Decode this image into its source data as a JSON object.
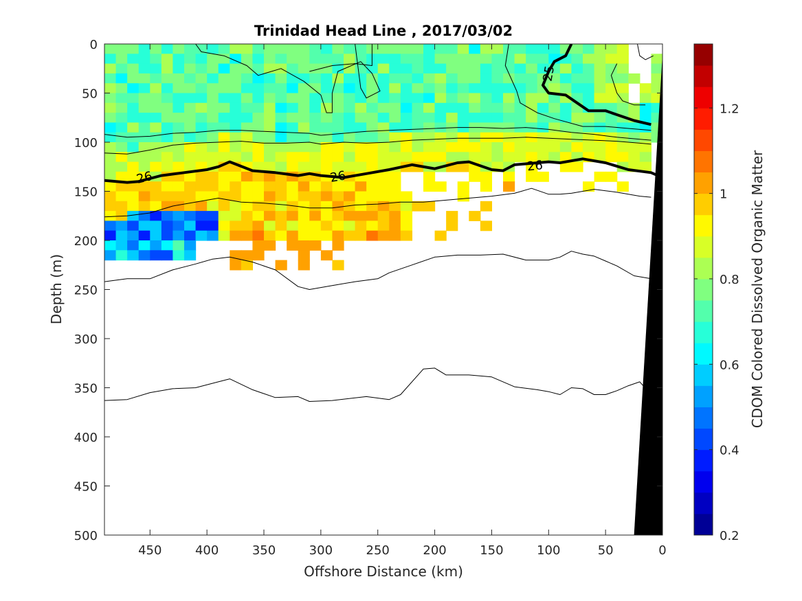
{
  "chart_data": [
    {
      "type": "heatmap",
      "title": "Trinidad Head Line , 2017/03/02",
      "xlabel": "Offshore Distance (km)",
      "ylabel": "Depth (m)",
      "xlim": [
        490,
        0
      ],
      "ylim": [
        0,
        500
      ],
      "x_reversed": true,
      "y_reversed": true,
      "x_ticks": [
        "450",
        "400",
        "350",
        "300",
        "250",
        "200",
        "150",
        "100",
        "50",
        "0"
      ],
      "y_ticks": [
        "0",
        "50",
        "100",
        "150",
        "200",
        "250",
        "300",
        "350",
        "400",
        "450",
        "500"
      ],
      "colorbar": {
        "label": "CDOM Colored Dissolved Organic Matter",
        "range": [
          0.2,
          1.35
        ],
        "ticks": [
          "0.2",
          "0.4",
          "0.6",
          "0.8",
          "1",
          "1.2"
        ],
        "colormap": "jet"
      },
      "contour_labels": [
        "25",
        "26",
        "26",
        "26"
      ],
      "bathymetry_color": "#000000",
      "cdom_layers": [
        {
          "depth_range": [
            0,
            90
          ],
          "typical_value": 0.75
        },
        {
          "depth_range": [
            90,
            130
          ],
          "typical_value": 0.9
        },
        {
          "depth_range": [
            130,
            200
          ],
          "typical_value": 0.95
        },
        {
          "depth_range": [
            160,
            220
          ],
          "typical_value": 0.45,
          "offshore_range": [
            490,
            390
          ]
        }
      ],
      "contours": [
        {
          "name": "deep",
          "level": "",
          "thick": false,
          "points": [
            [
              490,
              363
            ],
            [
              470,
              362
            ],
            [
              450,
              355
            ],
            [
              430,
              351
            ],
            [
              410,
              350
            ],
            [
              390,
              344
            ],
            [
              380,
              341
            ],
            [
              360,
              352
            ],
            [
              340,
              360
            ],
            [
              320,
              359
            ],
            [
              310,
              364
            ],
            [
              290,
              363
            ],
            [
              260,
              359
            ],
            [
              240,
              362
            ],
            [
              230,
              357
            ],
            [
              210,
              331
            ],
            [
              200,
              330
            ],
            [
              190,
              337
            ],
            [
              170,
              337
            ],
            [
              150,
              339
            ],
            [
              130,
              349
            ],
            [
              110,
              352
            ],
            [
              100,
              354
            ],
            [
              90,
              357
            ],
            [
              80,
              350
            ],
            [
              70,
              351
            ],
            [
              60,
              357
            ],
            [
              50,
              357
            ],
            [
              40,
              353
            ],
            [
              30,
              348
            ],
            [
              20,
              344
            ],
            [
              10,
              357
            ]
          ]
        },
        {
          "name": "c5",
          "level": "",
          "thick": false,
          "points": [
            [
              490,
              242
            ],
            [
              470,
              239
            ],
            [
              450,
              239
            ],
            [
              430,
              230
            ],
            [
              410,
              224
            ],
            [
              395,
              219
            ],
            [
              380,
              217
            ],
            [
              360,
              222
            ],
            [
              340,
              230
            ],
            [
              320,
              247
            ],
            [
              310,
              250
            ],
            [
              290,
              246
            ],
            [
              270,
              242
            ],
            [
              250,
              239
            ],
            [
              240,
              233
            ],
            [
              220,
              225
            ],
            [
              200,
              217
            ],
            [
              180,
              215
            ],
            [
              160,
              215
            ],
            [
              140,
              214
            ],
            [
              120,
              220
            ],
            [
              100,
              220
            ],
            [
              90,
              217
            ],
            [
              80,
              211
            ],
            [
              70,
              214
            ],
            [
              60,
              216
            ],
            [
              50,
              221
            ],
            [
              40,
              226
            ],
            [
              25,
              236
            ],
            [
              10,
              239
            ]
          ]
        },
        {
          "name": "c4",
          "level": "",
          "thick": false,
          "points": [
            [
              490,
              176
            ],
            [
              470,
              175
            ],
            [
              450,
              172
            ],
            [
              430,
              165
            ],
            [
              410,
              161
            ],
            [
              390,
              157
            ],
            [
              370,
              161
            ],
            [
              350,
              162
            ],
            [
              330,
              164
            ],
            [
              310,
              167
            ],
            [
              290,
              167
            ],
            [
              270,
              164
            ],
            [
              250,
              163
            ],
            [
              230,
              161
            ],
            [
              210,
              161
            ],
            [
              190,
              159
            ],
            [
              170,
              157
            ],
            [
              150,
              155
            ],
            [
              130,
              152
            ],
            [
              115,
              147
            ],
            [
              100,
              153
            ],
            [
              90,
              153
            ],
            [
              80,
              152
            ],
            [
              60,
              148
            ],
            [
              40,
              151
            ],
            [
              20,
              155
            ],
            [
              10,
              156
            ]
          ]
        },
        {
          "name": "iso26",
          "level": "26",
          "thick": true,
          "points": [
            [
              490,
              139
            ],
            [
              470,
              141
            ],
            [
              460,
              140
            ],
            [
              440,
              134
            ],
            [
              420,
              131
            ],
            [
              400,
              128
            ],
            [
              390,
              125
            ],
            [
              380,
              120
            ],
            [
              360,
              129
            ],
            [
              340,
              131
            ],
            [
              320,
              134
            ],
            [
              310,
              132
            ],
            [
              300,
              134
            ],
            [
              280,
              136
            ],
            [
              260,
              132
            ],
            [
              240,
              128
            ],
            [
              220,
              123
            ],
            [
              200,
              127
            ],
            [
              180,
              121
            ],
            [
              170,
              120
            ],
            [
              150,
              128
            ],
            [
              140,
              129
            ],
            [
              130,
              123
            ],
            [
              120,
              122
            ],
            [
              100,
              120
            ],
            [
              90,
              121
            ],
            [
              70,
              117
            ],
            [
              50,
              121
            ],
            [
              30,
              128
            ],
            [
              10,
              131
            ],
            [
              2,
              135
            ]
          ]
        },
        {
          "name": "c2",
          "level": "",
          "thick": false,
          "points": [
            [
              490,
              111
            ],
            [
              470,
              112
            ],
            [
              450,
              108
            ],
            [
              430,
              103
            ],
            [
              410,
              101
            ],
            [
              390,
              100
            ],
            [
              370,
              99
            ],
            [
              350,
              101
            ],
            [
              330,
              101
            ],
            [
              310,
              100
            ],
            [
              300,
              102
            ],
            [
              280,
              100
            ],
            [
              260,
              101
            ],
            [
              240,
              100
            ],
            [
              220,
              98
            ],
            [
              200,
              97
            ],
            [
              180,
              96
            ],
            [
              160,
              96
            ],
            [
              140,
              96
            ],
            [
              120,
              95
            ],
            [
              100,
              96
            ],
            [
              80,
              97
            ],
            [
              60,
              98
            ],
            [
              40,
              99
            ],
            [
              20,
              101
            ],
            [
              10,
              102
            ]
          ]
        },
        {
          "name": "c1",
          "level": "",
          "thick": false,
          "points": [
            [
              490,
              92
            ],
            [
              470,
              95
            ],
            [
              450,
              94
            ],
            [
              430,
              91
            ],
            [
              410,
              90
            ],
            [
              390,
              88
            ],
            [
              370,
              88
            ],
            [
              350,
              89
            ],
            [
              330,
              90
            ],
            [
              310,
              91
            ],
            [
              300,
              93
            ],
            [
              280,
              91
            ],
            [
              260,
              89
            ],
            [
              240,
              88
            ],
            [
              220,
              87
            ],
            [
              200,
              86
            ],
            [
              180,
              85
            ],
            [
              160,
              85
            ],
            [
              140,
              86
            ],
            [
              120,
              85
            ],
            [
              100,
              87
            ],
            [
              80,
              90
            ],
            [
              60,
              92
            ],
            [
              40,
              95
            ],
            [
              20,
              97
            ],
            [
              10,
              98
            ]
          ]
        },
        {
          "name": "iso25",
          "level": "25",
          "thick": true,
          "points": [
            [
              80,
              0
            ],
            [
              85,
              12
            ],
            [
              95,
              18
            ],
            [
              100,
              28
            ],
            [
              105,
              42
            ],
            [
              100,
              50
            ],
            [
              85,
              52
            ],
            [
              75,
              60
            ],
            [
              65,
              68
            ],
            [
              50,
              68
            ],
            [
              40,
              72
            ],
            [
              25,
              78
            ],
            [
              10,
              82
            ]
          ]
        },
        {
          "name": "top1",
          "level": "",
          "thick": false,
          "points": [
            [
              410,
              0
            ],
            [
              405,
              8
            ],
            [
              385,
              12
            ],
            [
              365,
              22
            ],
            [
              355,
              32
            ],
            [
              335,
              25
            ],
            [
              315,
              38
            ],
            [
              300,
              52
            ],
            [
              295,
              70
            ],
            [
              290,
              70
            ],
            [
              290,
              50
            ],
            [
              285,
              28
            ],
            [
              265,
              18
            ],
            [
              255,
              30
            ],
            [
              248,
              48
            ],
            [
              260,
              55
            ],
            [
              265,
              45
            ],
            [
              270,
              0
            ]
          ]
        },
        {
          "name": "top2",
          "level": "",
          "thick": false,
          "points": [
            [
              255,
              0
            ],
            [
              255,
              22
            ],
            [
              270,
              20
            ],
            [
              290,
              22
            ],
            [
              310,
              28
            ]
          ]
        },
        {
          "name": "top3",
          "level": "",
          "thick": false,
          "points": [
            [
              135,
              0
            ],
            [
              138,
              22
            ],
            [
              128,
              48
            ],
            [
              125,
              60
            ],
            [
              110,
              70
            ],
            [
              95,
              76
            ],
            [
              70,
              84
            ],
            [
              50,
              84
            ],
            [
              30,
              86
            ],
            [
              10,
              88
            ]
          ]
        },
        {
          "name": "top4",
          "level": "",
          "thick": false,
          "points": [
            [
              40,
              20
            ],
            [
              45,
              32
            ],
            [
              40,
              50
            ],
            [
              35,
              58
            ],
            [
              25,
              62
            ],
            [
              15,
              62
            ]
          ]
        },
        {
          "name": "top5",
          "level": "",
          "thick": false,
          "points": [
            [
              22,
              0
            ],
            [
              20,
              12
            ],
            [
              15,
              16
            ],
            [
              8,
              12
            ]
          ]
        }
      ],
      "bathymetry": [
        [
          0,
          10
        ],
        [
          25,
          500
        ],
        [
          0,
          500
        ]
      ]
    }
  ]
}
